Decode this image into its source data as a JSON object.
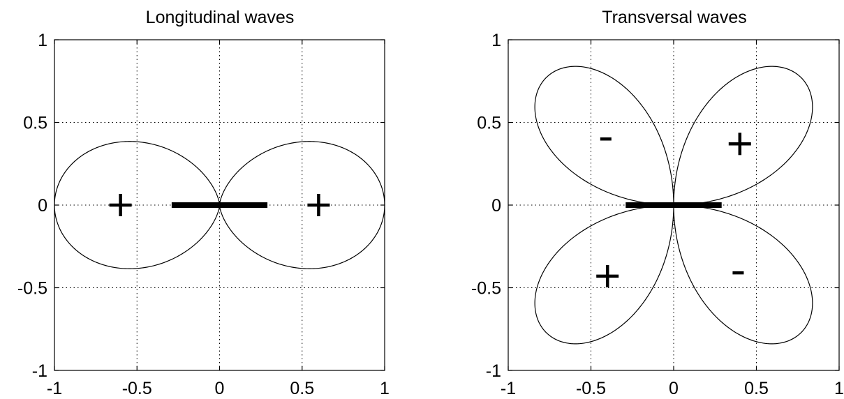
{
  "chart_data": [
    {
      "type": "line",
      "title": "Longitudinal waves",
      "xlabel": "",
      "ylabel": "",
      "xlim": [
        -1,
        1
      ],
      "ylim": [
        -1,
        1
      ],
      "x_ticks": [
        "-1",
        "-0.5",
        "0",
        "0.5",
        "1"
      ],
      "y_ticks": [
        "1",
        "0.5",
        "0",
        "-0.5",
        "-1"
      ],
      "grid": true,
      "pattern": "cos2",
      "lobe_extent": 1.0,
      "source_bar": {
        "x": [
          -0.29,
          0.29
        ],
        "y": 0
      },
      "series": [
        {
          "curve": "r = cos^2(theta)",
          "peak": [
            [
              1.0,
              0
            ],
            [
              -1.0,
              0
            ]
          ],
          "y_extent": 0.385
        }
      ],
      "annotations": [
        {
          "text": "+",
          "x": -0.6,
          "y": 0
        },
        {
          "text": "+",
          "x": 0.6,
          "y": 0
        }
      ]
    },
    {
      "type": "line",
      "title": "Transversal waves",
      "xlabel": "",
      "ylabel": "",
      "xlim": [
        -1,
        1
      ],
      "ylim": [
        -1,
        1
      ],
      "x_ticks": [
        "-1",
        "-0.5",
        "0",
        "0.5",
        "1"
      ],
      "y_ticks": [
        "1",
        "0.5",
        "0",
        "-0.5",
        "-1"
      ],
      "grid": true,
      "pattern": "sin2",
      "lobe_extent": 1.09,
      "source_bar": {
        "x": [
          -0.29,
          0.29
        ],
        "y": 0
      },
      "series": [
        {
          "curve": "r = |sin(2 theta)|",
          "lobe_directions_deg": [
            45,
            135,
            225,
            315
          ]
        }
      ],
      "annotations": [
        {
          "text": "-",
          "x": -0.41,
          "y": 0.4
        },
        {
          "text": "+",
          "x": 0.4,
          "y": 0.37
        },
        {
          "text": "+",
          "x": -0.4,
          "y": -0.43
        },
        {
          "text": "-",
          "x": 0.39,
          "y": -0.41
        }
      ]
    }
  ]
}
